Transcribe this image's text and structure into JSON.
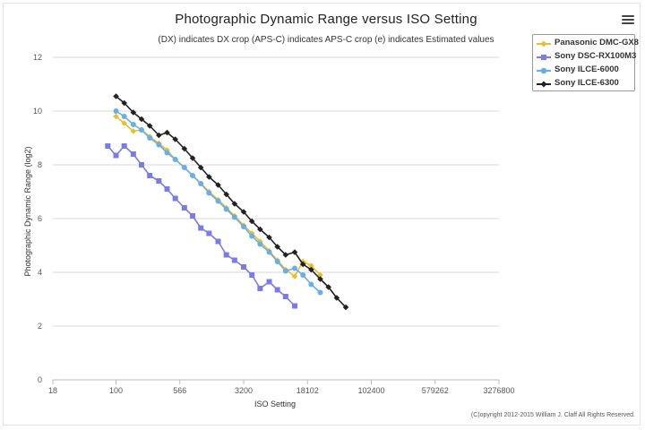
{
  "menu": {
    "icon": "hamburger-menu-icon"
  },
  "chart_data": {
    "type": "line",
    "title": "Photographic Dynamic Range versus ISO Setting",
    "subtitle": "(DX) indicates DX crop (APS-C) indicates APS-C crop (e) indicates Estimated values",
    "xlabel": "ISO Setting",
    "ylabel": "Photographic Dynamic Range (log2)",
    "x_scale": "log",
    "x_ticks": [
      "18",
      "100",
      "566",
      "3200",
      "18102",
      "102400",
      "579262",
      "3276800"
    ],
    "y_ticks": [
      "0",
      "2",
      "4",
      "6",
      "8",
      "10",
      "12"
    ],
    "ylim": [
      0,
      12
    ],
    "grid": true,
    "legend_position": "top-right",
    "series": [
      {
        "name": "Panasonic DMC-GX8",
        "color": "#e6c229",
        "marker": "diamond",
        "x": [
          100,
          125,
          160,
          200,
          250,
          320,
          400,
          500,
          640,
          800,
          1000,
          1250,
          1600,
          2000,
          2500,
          3200,
          4000,
          5000,
          6400,
          8000,
          10000,
          12800,
          16000,
          20000,
          25600
        ],
        "y": [
          9.8,
          9.55,
          9.25,
          9.3,
          9.05,
          8.8,
          8.55,
          8.2,
          7.9,
          7.6,
          7.3,
          7.0,
          6.7,
          6.4,
          6.1,
          5.75,
          5.45,
          5.15,
          4.8,
          4.45,
          4.1,
          3.85,
          4.4,
          4.25,
          3.9
        ]
      },
      {
        "name": "Sony DSC-RX100M3",
        "color": "#7b7be8",
        "marker": "square",
        "x": [
          80,
          100,
          125,
          160,
          200,
          250,
          320,
          400,
          500,
          640,
          800,
          1000,
          1250,
          1600,
          2000,
          2500,
          3200,
          4000,
          5000,
          6400,
          8000,
          10000,
          12800
        ],
        "y": [
          8.7,
          8.35,
          8.7,
          8.4,
          8.0,
          7.6,
          7.4,
          7.1,
          6.75,
          6.4,
          6.1,
          5.65,
          5.45,
          5.15,
          4.65,
          4.45,
          4.2,
          3.9,
          3.4,
          3.65,
          3.35,
          3.1,
          2.75
        ]
      },
      {
        "name": "Sony ILCE-6000",
        "color": "#6aaee6",
        "marker": "circle",
        "x": [
          100,
          125,
          160,
          200,
          250,
          320,
          400,
          500,
          640,
          800,
          1000,
          1250,
          1600,
          2000,
          2500,
          3200,
          4000,
          5000,
          6400,
          8000,
          10000,
          12800,
          16000,
          20000,
          25600
        ],
        "y": [
          10.0,
          9.8,
          9.5,
          9.3,
          9.0,
          8.75,
          8.45,
          8.2,
          7.9,
          7.6,
          7.3,
          6.95,
          6.65,
          6.35,
          6.05,
          5.7,
          5.35,
          5.05,
          4.75,
          4.4,
          4.05,
          4.15,
          3.9,
          3.55,
          3.25
        ]
      },
      {
        "name": "Sony ILCE-6300",
        "color": "#222222",
        "marker": "diamond",
        "x": [
          100,
          125,
          160,
          200,
          250,
          320,
          400,
          500,
          640,
          800,
          1000,
          1250,
          1600,
          2000,
          2500,
          3200,
          4000,
          5000,
          6400,
          8000,
          10000,
          12800,
          16000,
          20000,
          25600,
          32000,
          40000,
          51200
        ],
        "y": [
          10.55,
          10.3,
          9.95,
          9.7,
          9.45,
          9.1,
          9.2,
          8.95,
          8.6,
          8.25,
          7.9,
          7.55,
          7.25,
          6.9,
          6.55,
          6.25,
          5.9,
          5.6,
          5.3,
          4.95,
          4.65,
          4.75,
          4.3,
          4.1,
          3.75,
          3.45,
          3.05,
          2.7
        ]
      }
    ]
  },
  "footer": {
    "copyright": "(C)opyright 2012-2015 William J. Claff All Rights Reserved."
  }
}
